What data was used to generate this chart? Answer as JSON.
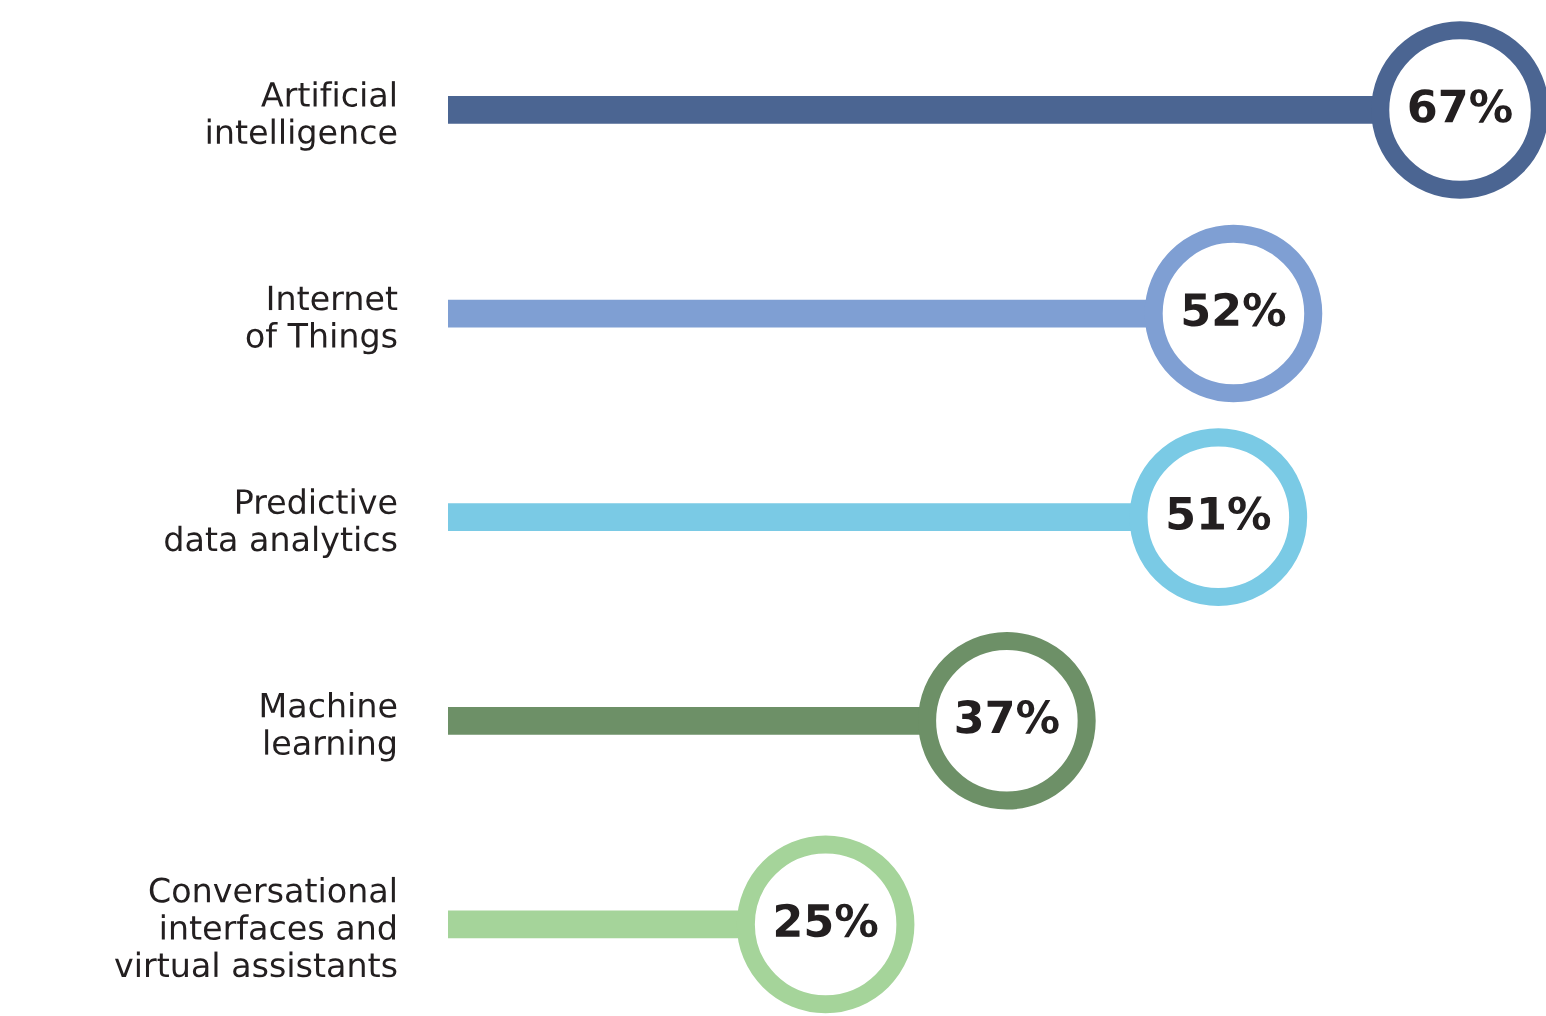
{
  "chart_data": {
    "type": "lollipop",
    "orientation": "horizontal",
    "categories": [
      "Artificial\nintelligence",
      "Internet\nof Things",
      "Predictive\ndata analytics",
      "Machine\nlearning",
      "Conversational\ninterfaces and\nvirtual assistants"
    ],
    "values": [
      67,
      52,
      51,
      37,
      25
    ],
    "colors": [
      "#4b6592",
      "#7f9fd3",
      "#7acae5",
      "#6d9067",
      "#a5d49a"
    ],
    "value_labels": [
      "67%",
      "52%",
      "51%",
      "37%",
      "25%"
    ],
    "grid": false,
    "legend": false
  }
}
